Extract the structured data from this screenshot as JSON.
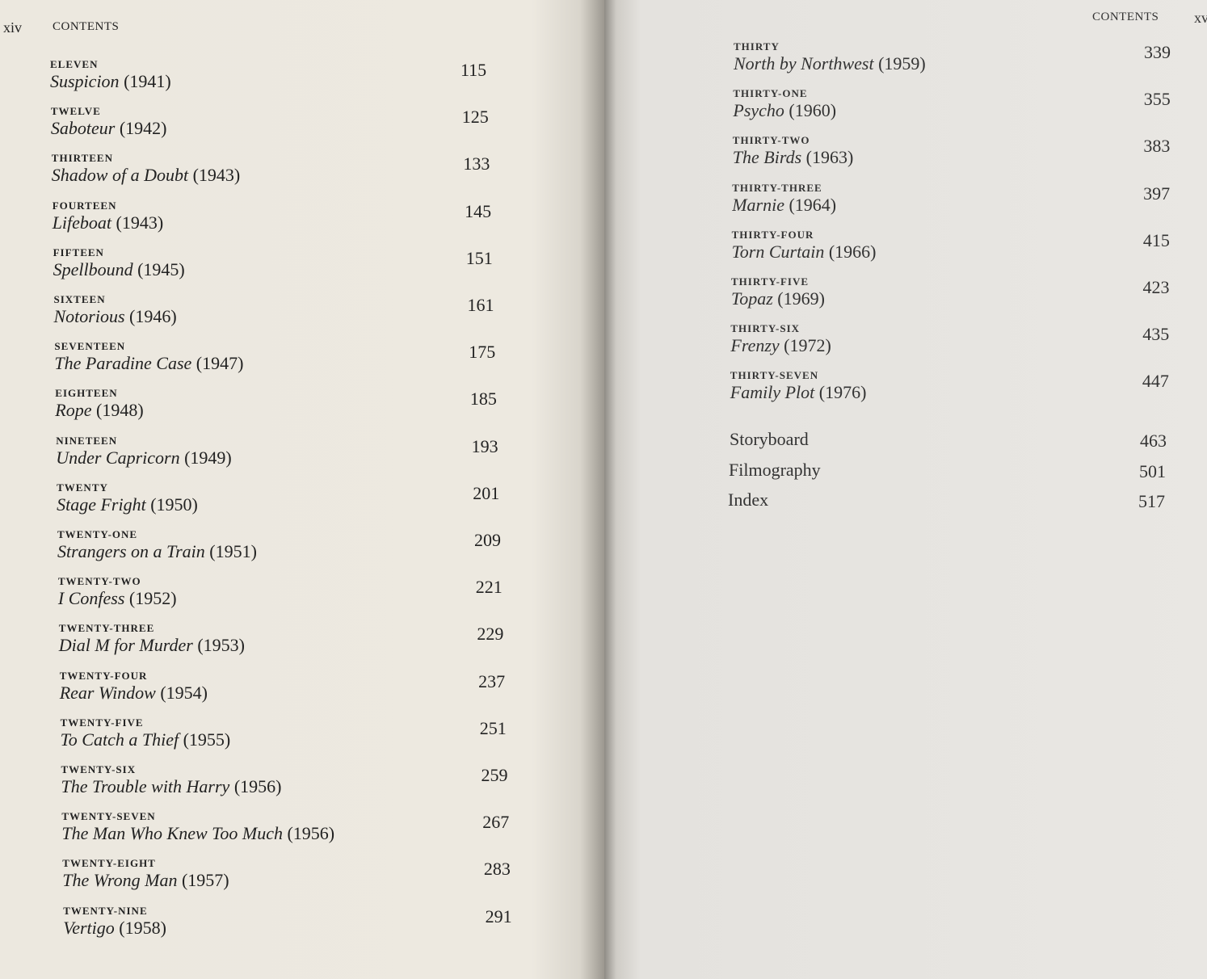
{
  "left_page": {
    "page_number": "xiv",
    "header": "CONTENTS",
    "entries": [
      {
        "chapter": "ELEVEN",
        "title": "Suspicion",
        "year": "(1941)",
        "page": 115
      },
      {
        "chapter": "TWELVE",
        "title": "Saboteur",
        "year": "(1942)",
        "page": 125
      },
      {
        "chapter": "THIRTEEN",
        "title": "Shadow of a Doubt",
        "year": "(1943)",
        "page": 133
      },
      {
        "chapter": "FOURTEEN",
        "title": "Lifeboat",
        "year": "(1943)",
        "page": 145
      },
      {
        "chapter": "FIFTEEN",
        "title": "Spellbound",
        "year": "(1945)",
        "page": 151
      },
      {
        "chapter": "SIXTEEN",
        "title": "Notorious",
        "year": "(1946)",
        "page": 161
      },
      {
        "chapter": "SEVENTEEN",
        "title": "The Paradine Case",
        "year": "(1947)",
        "page": 175
      },
      {
        "chapter": "EIGHTEEN",
        "title": "Rope",
        "year": "(1948)",
        "page": 185
      },
      {
        "chapter": "NINETEEN",
        "title": "Under Capricorn",
        "year": "(1949)",
        "page": 193
      },
      {
        "chapter": "TWENTY",
        "title": "Stage Fright",
        "year": "(1950)",
        "page": 201
      },
      {
        "chapter": "TWENTY-ONE",
        "title": "Strangers on a Train",
        "year": "(1951)",
        "page": 209
      },
      {
        "chapter": "TWENTY-TWO",
        "title": "I Confess",
        "year": "(1952)",
        "page": 221
      },
      {
        "chapter": "TWENTY-THREE",
        "title": "Dial M for Murder",
        "year": "(1953)",
        "page": 229
      },
      {
        "chapter": "TWENTY-FOUR",
        "title": "Rear Window",
        "year": "(1954)",
        "page": 237
      },
      {
        "chapter": "TWENTY-FIVE",
        "title": "To Catch a Thief",
        "year": "(1955)",
        "page": 251
      },
      {
        "chapter": "TWENTY-SIX",
        "title": "The Trouble with Harry",
        "year": "(1956)",
        "page": 259
      },
      {
        "chapter": "TWENTY-SEVEN",
        "title": "The Man Who Knew Too Much",
        "year": "(1956)",
        "page": 267
      },
      {
        "chapter": "TWENTY-EIGHT",
        "title": "The Wrong Man",
        "year": "(1957)",
        "page": 283
      },
      {
        "chapter": "TWENTY-NINE",
        "title": "Vertigo",
        "year": "(1958)",
        "page": 291
      }
    ]
  },
  "right_page": {
    "page_number": "xv",
    "header": "CONTENTS",
    "entries": [
      {
        "chapter": "THIRTY",
        "title": "North by Northwest",
        "year": "(1959)",
        "page": 339
      },
      {
        "chapter": "THIRTY-ONE",
        "title": "Psycho",
        "year": "(1960)",
        "page": 355
      },
      {
        "chapter": "THIRTY-TWO",
        "title": "The Birds",
        "year": "(1963)",
        "page": 383
      },
      {
        "chapter": "THIRTY-THREE",
        "title": "Marnie",
        "year": "(1964)",
        "page": 397
      },
      {
        "chapter": "THIRTY-FOUR",
        "title": "Torn Curtain",
        "year": "(1966)",
        "page": 415
      },
      {
        "chapter": "THIRTY-FIVE",
        "title": "Topaz",
        "year": "(1969)",
        "page": 423
      },
      {
        "chapter": "THIRTY-SIX",
        "title": "Frenzy",
        "year": "(1972)",
        "page": 435
      },
      {
        "chapter": "THIRTY-SEVEN",
        "title": "Family Plot",
        "year": "(1976)",
        "page": 447
      }
    ],
    "back_matter": [
      {
        "title": "Storyboard",
        "page": 463
      },
      {
        "title": "Filmography",
        "page": 501
      },
      {
        "title": "Index",
        "page": 517
      }
    ]
  }
}
